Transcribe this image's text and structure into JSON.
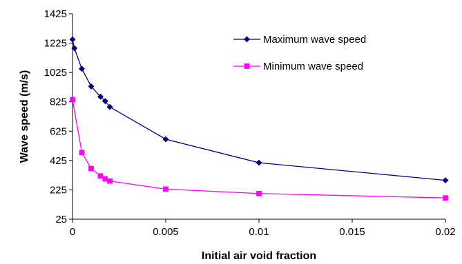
{
  "chart_data": {
    "type": "line",
    "title": "",
    "xlabel": "Initial air void fraction",
    "ylabel": "Wave speed (m/s)",
    "xlim": [
      0,
      0.02
    ],
    "ylim": [
      25,
      1425
    ],
    "x_ticks": [
      0,
      0.005,
      0.01,
      0.015,
      0.02
    ],
    "x_tick_labels": [
      "0",
      "0.005",
      "0.01",
      "0.015",
      "0.02"
    ],
    "y_ticks": [
      25,
      225,
      425,
      625,
      825,
      1025,
      1225,
      1425
    ],
    "y_tick_labels": [
      "25",
      "225",
      "425",
      "625",
      "825",
      "1025",
      "1225",
      "1425"
    ],
    "grid": false,
    "legend_position": "top-right",
    "series": [
      {
        "name": "Maximum wave speed",
        "color": "#000080",
        "marker": "diamond",
        "x": [
          0,
          0.0001,
          0.0005,
          0.001,
          0.0015,
          0.00175,
          0.002,
          0.005,
          0.01,
          0.02
        ],
        "y": [
          1250,
          1190,
          1050,
          930,
          860,
          830,
          790,
          570,
          410,
          290
        ]
      },
      {
        "name": "Minimum wave speed",
        "color": "#FF00FF",
        "marker": "square",
        "x": [
          0,
          0.0005,
          0.001,
          0.0015,
          0.00175,
          0.002,
          0.005,
          0.01,
          0.02
        ],
        "y": [
          840,
          480,
          370,
          320,
          300,
          285,
          230,
          200,
          170
        ]
      }
    ]
  }
}
